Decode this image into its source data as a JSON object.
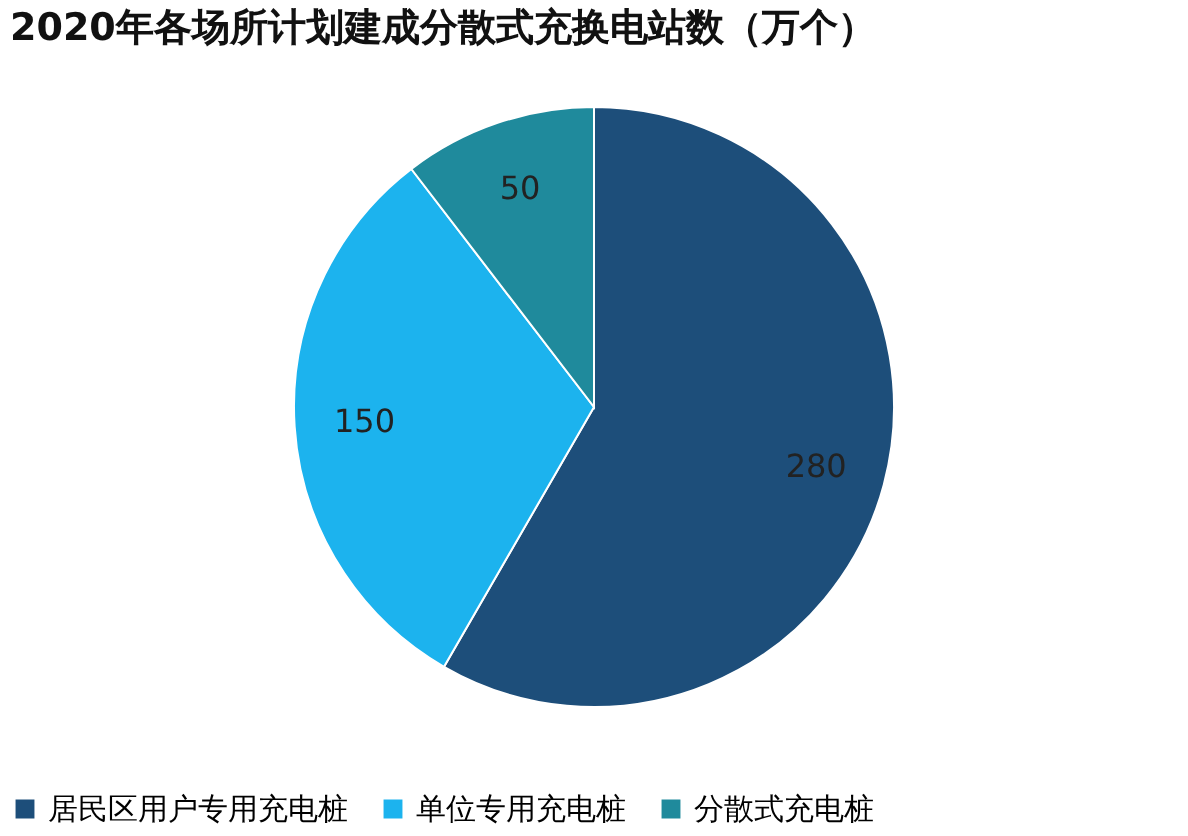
{
  "chart_data": {
    "type": "pie",
    "title": "2020年各场所计划建成分散式充换电站数（万个）",
    "categories": [
      "居民区用户专用充电桩",
      "单位专用充电桩",
      "分散式充电桩"
    ],
    "values": [
      280,
      150,
      50
    ],
    "colors": [
      "#1d4e7a",
      "#1cb3ee",
      "#1f8a9c"
    ],
    "data_labels": true,
    "legend": "bottom"
  }
}
